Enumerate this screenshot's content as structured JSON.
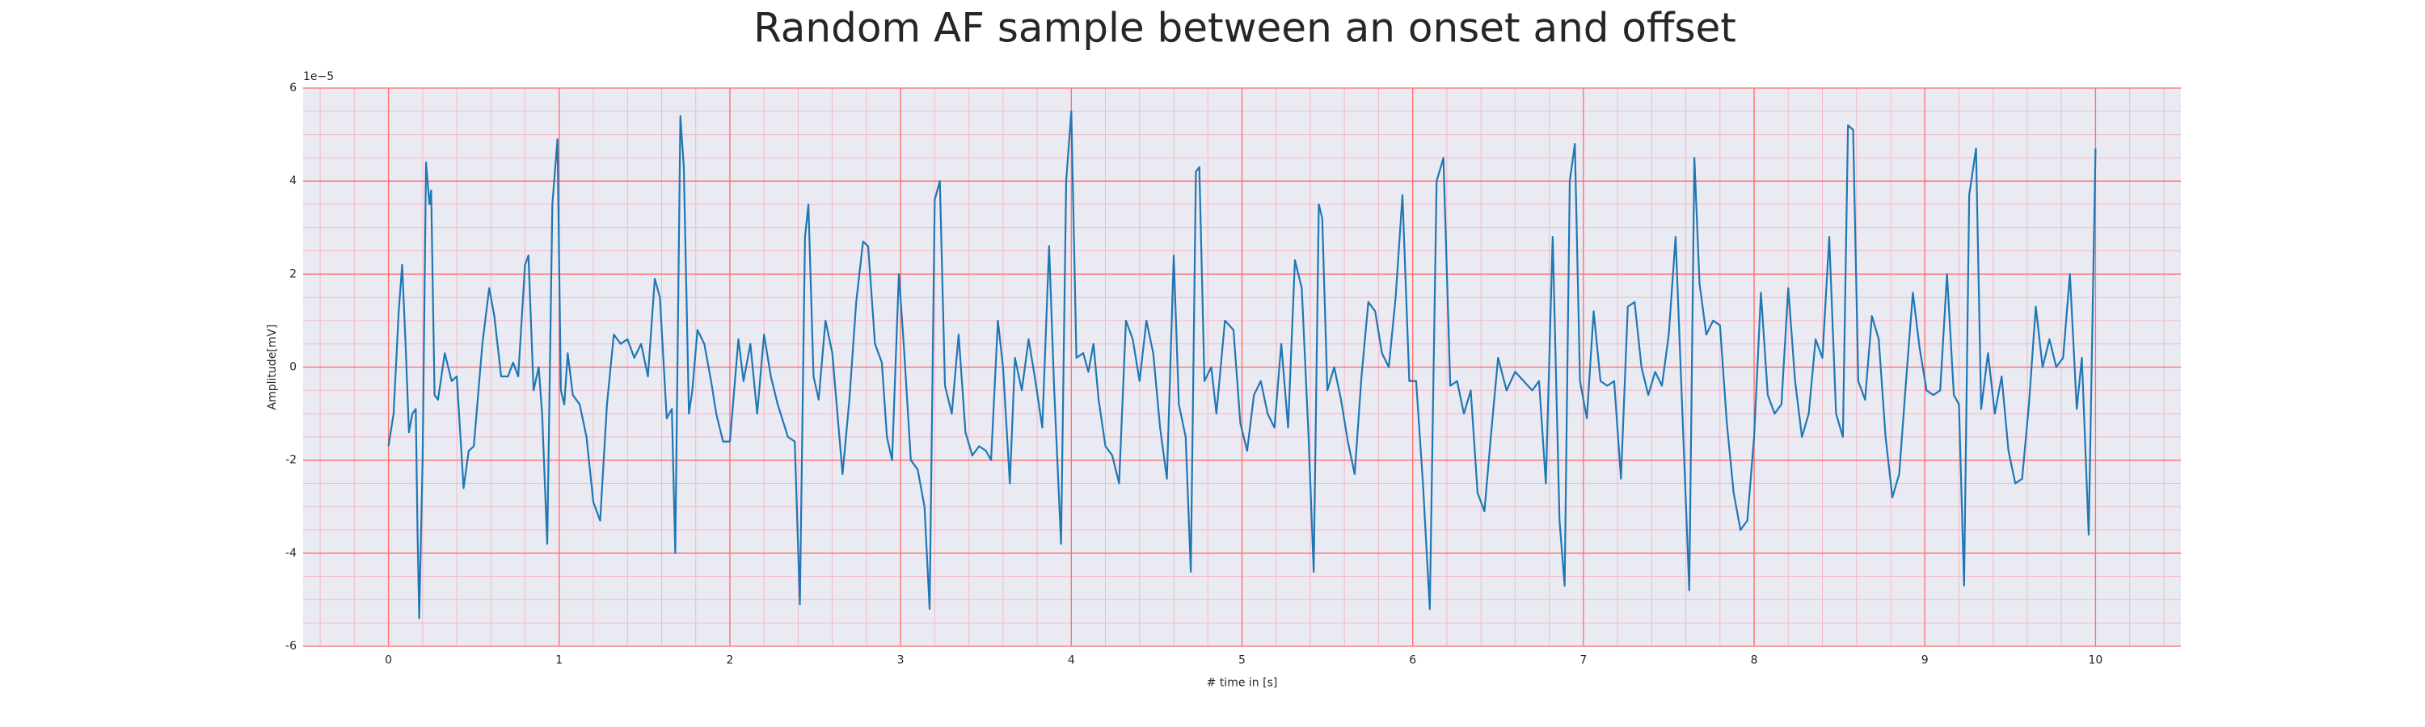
{
  "chart_data": {
    "type": "line",
    "title": "Random AF sample between an onset and offset",
    "xlabel": "# time in [s]",
    "ylabel": "Amplitude[mV]",
    "y_offset_label": "1e−5",
    "color": "#1f77b4",
    "background": "#eaeaf2",
    "grid": true,
    "grid_color": "#ff6b6b",
    "minor_grid_color": "#f5b8c8",
    "xlim": [
      -0.5,
      10.5
    ],
    "ylim": [
      -6,
      6
    ],
    "xticks": [
      0,
      1,
      2,
      3,
      4,
      5,
      6,
      7,
      8,
      9,
      10
    ],
    "yticks": [
      -6,
      -4,
      -2,
      0,
      2,
      4,
      6
    ],
    "xminorticks": [
      -0.4,
      -0.2,
      0.2,
      0.4,
      0.6,
      0.8,
      1.2,
      1.4,
      1.6,
      1.8,
      2.2,
      2.4,
      2.6,
      2.8,
      3.2,
      3.4,
      3.6,
      3.8,
      4.2,
      4.4,
      4.6,
      4.8,
      5.2,
      5.4,
      5.6,
      5.8,
      6.2,
      6.4,
      6.6,
      6.8,
      7.2,
      7.4,
      7.6,
      7.8,
      8.2,
      8.4,
      8.6,
      8.8,
      9.2,
      9.4,
      9.6,
      9.8,
      10.2,
      10.4
    ],
    "yminorticks": [
      -5.5,
      -5,
      -4.5,
      -3.5,
      -3,
      -2.5,
      -1.5,
      -1,
      -0.5,
      0.5,
      1,
      1.5,
      2.5,
      3,
      3.5,
      4.5,
      5,
      5.5
    ],
    "x": [
      0.0,
      0.03,
      0.06,
      0.08,
      0.1,
      0.12,
      0.14,
      0.16,
      0.17,
      0.18,
      0.2,
      0.22,
      0.24,
      0.25,
      0.27,
      0.29,
      0.33,
      0.37,
      0.4,
      0.44,
      0.47,
      0.5,
      0.55,
      0.59,
      0.62,
      0.66,
      0.7,
      0.73,
      0.76,
      0.8,
      0.82,
      0.85,
      0.88,
      0.9,
      0.93,
      0.96,
      0.99,
      1.01,
      1.03,
      1.05,
      1.08,
      1.12,
      1.16,
      1.2,
      1.24,
      1.28,
      1.32,
      1.36,
      1.4,
      1.44,
      1.48,
      1.52,
      1.56,
      1.59,
      1.63,
      1.66,
      1.68,
      1.71,
      1.73,
      1.76,
      1.78,
      1.81,
      1.85,
      1.89,
      1.92,
      1.96,
      2.0,
      2.05,
      2.08,
      2.12,
      2.16,
      2.2,
      2.24,
      2.28,
      2.34,
      2.38,
      2.41,
      2.44,
      2.46,
      2.49,
      2.52,
      2.56,
      2.6,
      2.66,
      2.7,
      2.74,
      2.78,
      2.81,
      2.85,
      2.89,
      2.92,
      2.95,
      2.99,
      3.02,
      3.06,
      3.1,
      3.14,
      3.17,
      3.2,
      3.23,
      3.26,
      3.3,
      3.34,
      3.38,
      3.42,
      3.46,
      3.5,
      3.53,
      3.57,
      3.6,
      3.64,
      3.67,
      3.71,
      3.75,
      3.79,
      3.83,
      3.87,
      3.9,
      3.94,
      3.97,
      4.0,
      4.03,
      4.07,
      4.1,
      4.13,
      4.16,
      4.2,
      4.24,
      4.28,
      4.32,
      4.36,
      4.4,
      4.44,
      4.48,
      4.52,
      4.56,
      4.6,
      4.63,
      4.67,
      4.7,
      4.73,
      4.75,
      4.78,
      4.82,
      4.85,
      4.9,
      4.95,
      4.99,
      5.03,
      5.07,
      5.11,
      5.15,
      5.19,
      5.23,
      5.27,
      5.31,
      5.35,
      5.39,
      5.42,
      5.45,
      5.47,
      5.5,
      5.54,
      5.58,
      5.62,
      5.66,
      5.7,
      5.74,
      5.78,
      5.82,
      5.86,
      5.9,
      5.94,
      5.98,
      6.02,
      6.06,
      6.1,
      6.14,
      6.18,
      6.22,
      6.26,
      6.3,
      6.34,
      6.38,
      6.42,
      6.46,
      6.5,
      6.55,
      6.6,
      6.65,
      6.7,
      6.74,
      6.78,
      6.82,
      6.86,
      6.89,
      6.92,
      6.95,
      6.98,
      7.02,
      7.06,
      7.1,
      7.14,
      7.18,
      7.22,
      7.26,
      7.3,
      7.34,
      7.38,
      7.42,
      7.46,
      7.5,
      7.54,
      7.58,
      7.62,
      7.65,
      7.68,
      7.72,
      7.76,
      7.8,
      7.84,
      7.88,
      7.92,
      7.96,
      8.0,
      8.04,
      8.08,
      8.12,
      8.16,
      8.2,
      8.24,
      8.28,
      8.32,
      8.36,
      8.4,
      8.44,
      8.48,
      8.52,
      8.55,
      8.58,
      8.61,
      8.65,
      8.69,
      8.73,
      8.77,
      8.81,
      8.85,
      8.89,
      8.93,
      8.97,
      9.01,
      9.05,
      9.09,
      9.13,
      9.17,
      9.2,
      9.23,
      9.26,
      9.3,
      9.33,
      9.37,
      9.41,
      9.45,
      9.49,
      9.53,
      9.57,
      9.61,
      9.65,
      9.69,
      9.73,
      9.77,
      9.81,
      9.85,
      9.89,
      9.92,
      9.96,
      10.0
    ],
    "values": [
      -1.7,
      -1.0,
      1.2,
      2.2,
      0.5,
      -1.4,
      -1.0,
      -0.9,
      -3.5,
      -5.4,
      -2.0,
      4.4,
      3.5,
      3.8,
      -0.6,
      -0.7,
      0.3,
      -0.3,
      -0.2,
      -2.6,
      -1.8,
      -1.7,
      0.5,
      1.7,
      1.1,
      -0.2,
      -0.2,
      0.1,
      -0.2,
      2.2,
      2.4,
      -0.5,
      0.0,
      -1.0,
      -3.8,
      3.5,
      4.9,
      -0.5,
      -0.8,
      0.3,
      -0.6,
      -0.8,
      -1.5,
      -2.9,
      -3.3,
      -0.8,
      0.7,
      0.5,
      0.6,
      0.2,
      0.5,
      -0.2,
      1.9,
      1.5,
      -1.1,
      -0.9,
      -4.0,
      5.4,
      4.3,
      -1.0,
      -0.5,
      0.8,
      0.5,
      -0.3,
      -1.0,
      -1.6,
      -1.6,
      0.6,
      -0.3,
      0.5,
      -1.0,
      0.7,
      -0.2,
      -0.8,
      -1.5,
      -1.6,
      -5.1,
      2.8,
      3.5,
      -0.2,
      -0.7,
      1.0,
      0.3,
      -2.3,
      -0.7,
      1.4,
      2.7,
      2.6,
      0.5,
      0.1,
      -1.5,
      -2.0,
      2.0,
      0.4,
      -2.0,
      -2.2,
      -3.0,
      -5.2,
      3.6,
      4.0,
      -0.4,
      -1.0,
      0.7,
      -1.4,
      -1.9,
      -1.7,
      -1.8,
      -2.0,
      1.0,
      0.0,
      -2.5,
      0.2,
      -0.5,
      0.6,
      -0.3,
      -1.3,
      2.6,
      -0.5,
      -3.8,
      4.0,
      5.5,
      0.2,
      0.3,
      -0.1,
      0.5,
      -0.7,
      -1.7,
      -1.9,
      -2.5,
      1.0,
      0.6,
      -0.3,
      1.0,
      0.3,
      -1.3,
      -2.4,
      2.4,
      -0.8,
      -1.5,
      -4.4,
      4.2,
      4.3,
      -0.3,
      0.0,
      -1.0,
      1.0,
      0.8,
      -1.2,
      -1.8,
      -0.6,
      -0.3,
      -1.0,
      -1.3,
      0.5,
      -1.3,
      2.3,
      1.7,
      -1.5,
      -4.4,
      3.5,
      3.2,
      -0.5,
      0.0,
      -0.7,
      -1.6,
      -2.3,
      -0.2,
      1.4,
      1.2,
      0.3,
      0.0,
      1.5,
      3.7,
      -0.3,
      -0.3,
      -2.5,
      -5.2,
      4.0,
      4.5,
      -0.4,
      -0.3,
      -1.0,
      -0.5,
      -2.7,
      -3.1,
      -1.4,
      0.2,
      -0.5,
      -0.1,
      -0.3,
      -0.5,
      -0.3,
      -2.5,
      2.8,
      -3.3,
      -4.7,
      4.0,
      4.8,
      -0.3,
      -1.1,
      1.2,
      -0.3,
      -0.4,
      -0.3,
      -2.4,
      1.3,
      1.4,
      0.0,
      -0.6,
      -0.1,
      -0.4,
      0.7,
      2.8,
      -1.0,
      -4.8,
      4.5,
      1.8,
      0.7,
      1.0,
      0.9,
      -1.2,
      -2.7,
      -3.5,
      -3.3,
      -1.5,
      1.6,
      -0.6,
      -1.0,
      -0.8,
      1.7,
      -0.3,
      -1.5,
      -1.0,
      0.6,
      0.2,
      2.8,
      -1.0,
      -1.5,
      5.2,
      5.1,
      -0.3,
      -0.7,
      1.1,
      0.6,
      -1.5,
      -2.8,
      -2.3,
      -0.3,
      1.6,
      0.4,
      -0.5,
      -0.6,
      -0.5,
      2.0,
      -0.6,
      -0.8,
      -4.7,
      3.7,
      4.7,
      -0.9,
      0.3,
      -1.0,
      -0.2,
      -1.8,
      -2.5,
      -2.4,
      -0.8,
      1.3,
      0.0,
      0.6,
      0.0,
      0.2,
      2.0,
      -0.9,
      0.2,
      -3.6,
      4.7
    ]
  }
}
